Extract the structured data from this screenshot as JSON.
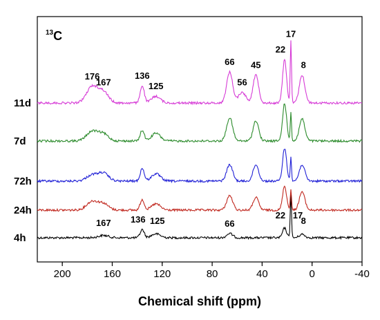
{
  "chart_data": {
    "type": "line",
    "nucleus_label": {
      "sup": "13",
      "main": "C"
    },
    "xlabel": "Chemical shift (ppm)",
    "ylabel": "",
    "xlim": [
      220,
      -40
    ],
    "x_reversed": true,
    "x_ticks": [
      200,
      160,
      120,
      80,
      40,
      0,
      -40
    ],
    "grid": false,
    "series": [
      {
        "name": "4h",
        "color": "#000000",
        "peaks": [
          {
            "x": 167,
            "y": 0.12
          },
          {
            "x": 136,
            "y": 0.42
          },
          {
            "x": 125,
            "y": 0.2
          },
          {
            "x": 66,
            "y": 0.22
          },
          {
            "x": 22,
            "y": 0.5
          },
          {
            "x": 17,
            "y": 2.3
          },
          {
            "x": 8,
            "y": 0.18
          }
        ],
        "labels": [
          {
            "x": 167,
            "text": "167"
          },
          {
            "x": 136,
            "text": "136"
          },
          {
            "x": 125,
            "text": "125"
          },
          {
            "x": 66,
            "text": "66"
          },
          {
            "x": 22,
            "text": "22"
          },
          {
            "x": 17,
            "text": "17"
          },
          {
            "x": 8,
            "text": "8"
          }
        ]
      },
      {
        "name": "24h",
        "color": "#c0271e",
        "peaks": [
          {
            "x": 176,
            "y": 0.45
          },
          {
            "x": 167,
            "y": 0.32
          },
          {
            "x": 136,
            "y": 0.55
          },
          {
            "x": 125,
            "y": 0.32
          },
          {
            "x": 66,
            "y": 0.75
          },
          {
            "x": 45,
            "y": 0.65
          },
          {
            "x": 22,
            "y": 1.25
          },
          {
            "x": 17,
            "y": 1.1
          },
          {
            "x": 8,
            "y": 0.95
          }
        ],
        "labels": []
      },
      {
        "name": "72h",
        "color": "#1f1fd6",
        "peaks": [
          {
            "x": 176,
            "y": 0.32
          },
          {
            "x": 167,
            "y": 0.4
          },
          {
            "x": 136,
            "y": 0.65
          },
          {
            "x": 125,
            "y": 0.38
          },
          {
            "x": 66,
            "y": 0.85
          },
          {
            "x": 45,
            "y": 0.85
          },
          {
            "x": 22,
            "y": 1.7
          },
          {
            "x": 17,
            "y": 1.3
          },
          {
            "x": 8,
            "y": 0.85
          }
        ],
        "labels": []
      },
      {
        "name": "7d",
        "color": "#2a8a2a",
        "peaks": [
          {
            "x": 176,
            "y": 0.5
          },
          {
            "x": 167,
            "y": 0.35
          },
          {
            "x": 136,
            "y": 0.55
          },
          {
            "x": 125,
            "y": 0.4
          },
          {
            "x": 66,
            "y": 1.2
          },
          {
            "x": 45,
            "y": 1.05
          },
          {
            "x": 22,
            "y": 1.95
          },
          {
            "x": 17,
            "y": 1.5
          },
          {
            "x": 8,
            "y": 1.15
          }
        ],
        "labels": []
      },
      {
        "name": "11d",
        "color": "#d63ad6",
        "peaks": [
          {
            "x": 176,
            "y": 0.85
          },
          {
            "x": 167,
            "y": 0.55
          },
          {
            "x": 136,
            "y": 0.9
          },
          {
            "x": 125,
            "y": 0.35
          },
          {
            "x": 66,
            "y": 1.6
          },
          {
            "x": 56,
            "y": 0.55
          },
          {
            "x": 45,
            "y": 1.45
          },
          {
            "x": 22,
            "y": 2.25
          },
          {
            "x": 17,
            "y": 3.2
          },
          {
            "x": 8,
            "y": 1.45
          }
        ],
        "labels": [
          {
            "x": 176,
            "text": "176"
          },
          {
            "x": 167,
            "text": "167"
          },
          {
            "x": 136,
            "text": "136"
          },
          {
            "x": 125,
            "text": "125"
          },
          {
            "x": 66,
            "text": "66"
          },
          {
            "x": 56,
            "text": "56"
          },
          {
            "x": 45,
            "text": "45"
          },
          {
            "x": 22,
            "text": "22"
          },
          {
            "x": 17,
            "text": "17"
          },
          {
            "x": 8,
            "text": "8"
          }
        ]
      }
    ]
  }
}
